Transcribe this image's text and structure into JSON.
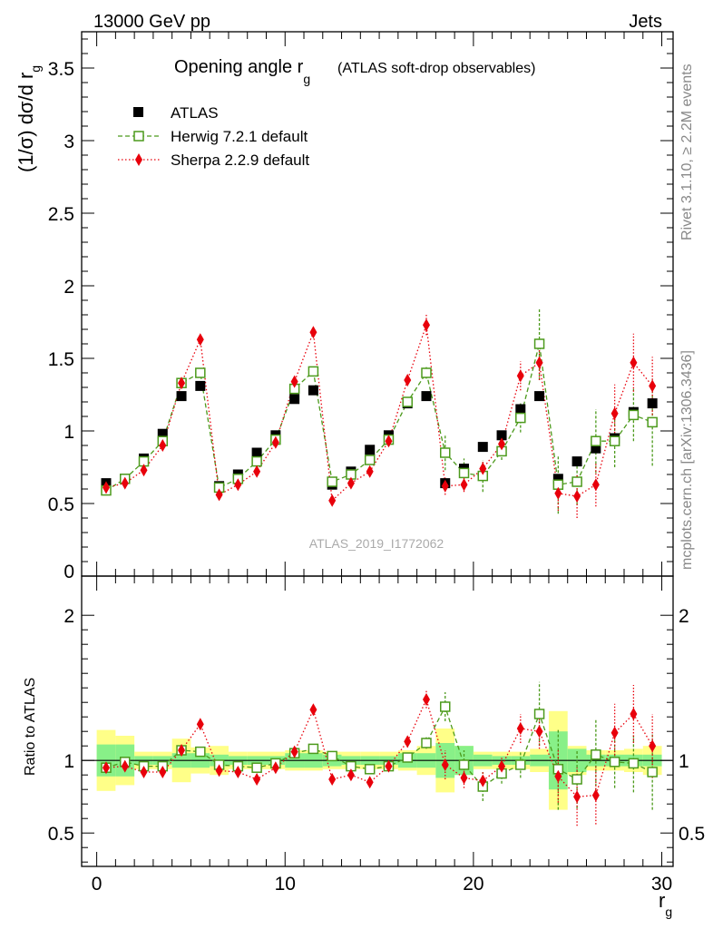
{
  "header": {
    "left": "13000 GeV pp",
    "right": "Jets"
  },
  "title": {
    "main": "Opening angle r",
    "sub": "g",
    "paren": "(ATLAS soft-drop observables)"
  },
  "side_labels": {
    "rivet": "Rivet 3.1.10, ≥ 2.2M events",
    "mcplots": "mcplots.cern.ch [arXiv:1306.3436]"
  },
  "watermark": "ATLAS_2019_I1772062",
  "axes": {
    "main_ylabel": "(1/σ) dσ/d r",
    "main_ylabel_sub": "g",
    "ratio_ylabel": "Ratio to ATLAS",
    "xlabel": "r",
    "xlabel_sub": "g"
  },
  "legend": [
    "ATLAS",
    "Herwig 7.2.1 default",
    "Sherpa 2.2.9 default"
  ],
  "colors": {
    "atlas": "#000000",
    "herwig": "#4c9a1c",
    "sherpa": "#e8000b",
    "band_inner": "#88f088",
    "band_outer": "#ffff88"
  },
  "chart_data": {
    "type": "scatter",
    "x": [
      0.5,
      1.5,
      2.5,
      3.5,
      4.5,
      5.5,
      6.5,
      7.5,
      8.5,
      9.5,
      10.5,
      11.5,
      12.5,
      13.5,
      14.5,
      15.5,
      16.5,
      17.5,
      18.5,
      19.5,
      20.5,
      21.5,
      22.5,
      23.5,
      24.5,
      25.5,
      26.5,
      27.5,
      28.5,
      29.5
    ],
    "xlim": [
      -0.8,
      30.6
    ],
    "main_ylim": [
      0,
      3.75
    ],
    "main_yticks": [
      "0.5",
      "1",
      "1.5",
      "2",
      "2.5",
      "3",
      "3.5"
    ],
    "main_ytick_values": [
      0.5,
      1,
      1.5,
      2,
      2.5,
      3,
      3.5
    ],
    "xticks": [
      "0",
      "10",
      "20",
      "30"
    ],
    "xtick_values": [
      0,
      10,
      20,
      30
    ],
    "ratio_ylim": [
      0.27,
      2.27
    ],
    "ratio_yticks": [
      "0.5",
      "1",
      "2"
    ],
    "ratio_ytick_values": [
      0.5,
      1,
      2
    ],
    "series": [
      {
        "name": "ATLAS",
        "values": [
          0.64,
          0.67,
          0.81,
          0.98,
          1.24,
          1.31,
          0.62,
          0.7,
          0.85,
          0.97,
          1.22,
          1.28,
          0.63,
          0.72,
          0.87,
          0.97,
          1.19,
          1.24,
          0.64,
          0.74,
          0.89,
          0.97,
          1.15,
          1.24,
          0.67,
          0.79,
          0.88,
          0.95,
          1.13,
          1.19
        ]
      },
      {
        "name": "Herwig 7.2.1 default",
        "values": [
          0.59,
          0.67,
          0.79,
          0.93,
          1.33,
          1.4,
          0.61,
          0.67,
          0.79,
          0.94,
          1.29,
          1.41,
          0.65,
          0.7,
          0.8,
          0.94,
          1.2,
          1.4,
          0.85,
          0.71,
          0.69,
          0.86,
          1.09,
          1.6,
          0.63,
          0.65,
          0.93,
          0.93,
          1.11,
          1.06
        ],
        "errors": [
          0.01,
          0.01,
          0.01,
          0.01,
          0.02,
          0.02,
          0.01,
          0.01,
          0.01,
          0.01,
          0.02,
          0.02,
          0.02,
          0.02,
          0.02,
          0.02,
          0.03,
          0.04,
          0.12,
          0.1,
          0.11,
          0.06,
          0.1,
          0.25,
          0.2,
          0.16,
          0.22,
          0.18,
          0.18,
          0.3
        ]
      },
      {
        "name": "Sherpa 2.2.9 default",
        "values": [
          0.61,
          0.64,
          0.73,
          0.9,
          1.33,
          1.63,
          0.56,
          0.63,
          0.72,
          0.92,
          1.34,
          1.68,
          0.52,
          0.64,
          0.72,
          0.93,
          1.35,
          1.73,
          0.62,
          0.63,
          0.74,
          0.91,
          1.38,
          1.47,
          0.57,
          0.55,
          0.63,
          1.12,
          1.47,
          1.31
        ],
        "errors": [
          0.01,
          0.01,
          0.01,
          0.01,
          0.02,
          0.02,
          0.01,
          0.01,
          0.01,
          0.01,
          0.02,
          0.03,
          0.01,
          0.02,
          0.02,
          0.02,
          0.04,
          0.07,
          0.06,
          0.05,
          0.05,
          0.05,
          0.1,
          0.12,
          0.12,
          0.15,
          0.15,
          0.2,
          0.2,
          0.2
        ]
      }
    ],
    "ratio": {
      "herwig": [
        0.95,
        0.99,
        0.96,
        0.96,
        1.07,
        1.06,
        0.97,
        0.96,
        0.95,
        0.98,
        1.05,
        1.08,
        1.03,
        0.96,
        0.94,
        0.96,
        1.02,
        1.12,
        1.37,
        0.97,
        0.82,
        0.91,
        0.97,
        1.32,
        0.94,
        0.87,
        1.04,
        0.99,
        0.98,
        0.92
      ],
      "herwig_err": [
        0.01,
        0.01,
        0.01,
        0.01,
        0.02,
        0.02,
        0.01,
        0.01,
        0.01,
        0.01,
        0.02,
        0.02,
        0.02,
        0.02,
        0.02,
        0.02,
        0.02,
        0.04,
        0.1,
        0.1,
        0.1,
        0.07,
        0.09,
        0.22,
        0.28,
        0.2,
        0.25,
        0.18,
        0.2,
        0.26
      ],
      "sherpa": [
        0.95,
        0.96,
        0.92,
        0.92,
        1.07,
        1.25,
        0.93,
        0.92,
        0.87,
        0.95,
        1.06,
        1.35,
        0.87,
        0.9,
        0.85,
        0.96,
        1.13,
        1.42,
        0.97,
        0.88,
        0.86,
        0.96,
        1.22,
        1.2,
        0.89,
        0.75,
        0.76,
        1.19,
        1.32,
        1.1
      ],
      "sherpa_err": [
        0.01,
        0.01,
        0.01,
        0.01,
        0.02,
        0.02,
        0.01,
        0.01,
        0.01,
        0.01,
        0.02,
        0.03,
        0.02,
        0.02,
        0.02,
        0.02,
        0.04,
        0.06,
        0.1,
        0.07,
        0.06,
        0.06,
        0.1,
        0.12,
        0.18,
        0.2,
        0.2,
        0.2,
        0.2,
        0.22
      ],
      "band_inner": [
        0.11,
        0.11,
        0.03,
        0.03,
        0.05,
        0.05,
        0.04,
        0.03,
        0.03,
        0.03,
        0.05,
        0.05,
        0.04,
        0.03,
        0.03,
        0.03,
        0.05,
        0.05,
        0.12,
        0.1,
        0.04,
        0.03,
        0.03,
        0.04,
        0.2,
        0.08,
        0.04,
        0.04,
        0.04,
        0.04
      ],
      "band_outer": [
        0.21,
        0.17,
        0.06,
        0.06,
        0.15,
        0.09,
        0.1,
        0.06,
        0.06,
        0.06,
        0.07,
        0.07,
        0.06,
        0.06,
        0.06,
        0.06,
        0.07,
        0.1,
        0.22,
        0.1,
        0.06,
        0.06,
        0.06,
        0.08,
        0.34,
        0.1,
        0.07,
        0.07,
        0.08,
        0.1
      ]
    }
  }
}
